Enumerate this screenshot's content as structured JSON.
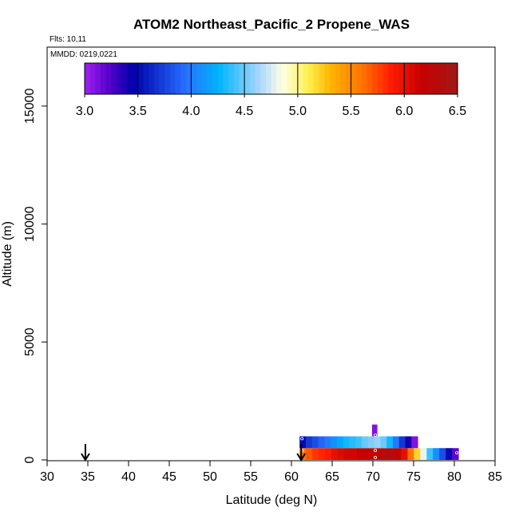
{
  "chart_data": {
    "type": "heatmap",
    "title": "ATOM2 Northeast_Pacific_2 Propene_WAS",
    "flights_label": "Flts: 10,11",
    "mmdd_label": "MMDD: 0219,0221",
    "xlabel": "Latitude (deg N)",
    "ylabel": "Altitude (m)",
    "xlim": [
      30,
      85
    ],
    "ylim": [
      0,
      17500
    ],
    "x_ticks": [
      "30",
      "35",
      "40",
      "45",
      "50",
      "55",
      "60",
      "65",
      "70",
      "75",
      "80",
      "85"
    ],
    "y_ticks": [
      "0",
      "5000",
      "10000",
      "15000"
    ],
    "grid": false,
    "colorbar": {
      "range": [
        3.0,
        6.5
      ],
      "ticks": [
        "3.0",
        "3.5",
        "4.0",
        "4.5",
        "5.0",
        "5.5",
        "6.0",
        "6.5"
      ],
      "placement": "top"
    },
    "arrows_lat": [
      34.7,
      61.2
    ],
    "series": [
      {
        "alt_bottom": 0,
        "alt_top": 500,
        "lat_start": 61.0,
        "lat_end": 80.5,
        "values": [
          5.6,
          5.7,
          5.8,
          5.85,
          5.9,
          6.0,
          6.05,
          6.1,
          6.1,
          6.15,
          6.15,
          6.2,
          6.25,
          6.3,
          6.3,
          6.2,
          6.0,
          5.6,
          5.2,
          4.8,
          4.4,
          4.1,
          3.8,
          3.5,
          3.2
        ]
      },
      {
        "alt_bottom": 500,
        "alt_top": 1000,
        "lat_start": 61.0,
        "lat_end": 75.5,
        "values": [
          3.5,
          3.7,
          3.8,
          3.9,
          4.0,
          4.1,
          4.2,
          4.3,
          4.35,
          4.4,
          4.5,
          4.55,
          4.6,
          4.5,
          4.3,
          4.0,
          3.7,
          3.4,
          3.1
        ]
      },
      {
        "alt_bottom": 1000,
        "alt_top": 1500,
        "lat_start": 69.9,
        "lat_end": 70.5,
        "values": [
          3.1
        ]
      }
    ],
    "sample_points": [
      {
        "lat": 61.3,
        "alt": 900
      },
      {
        "lat": 61.3,
        "alt": 400
      },
      {
        "lat": 70.3,
        "alt": 1050
      },
      {
        "lat": 70.3,
        "alt": 400
      },
      {
        "lat": 70.3,
        "alt": 100
      },
      {
        "lat": 80.3,
        "alt": 300
      }
    ]
  }
}
